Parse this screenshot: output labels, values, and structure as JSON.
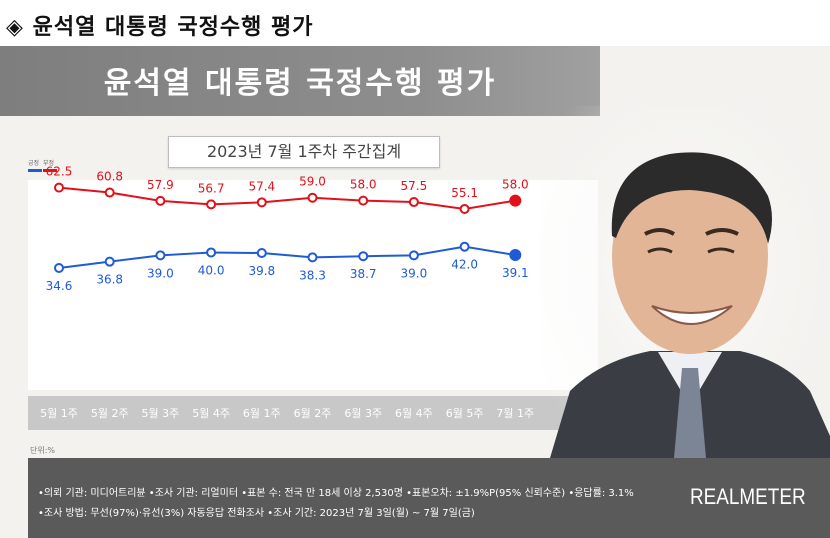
{
  "header": {
    "marker": "◈",
    "title": "윤석열 대통령 국정수행 평가"
  },
  "card": {
    "title": "윤석열 대통령 국정수행 평가",
    "subtitle": "2023년 7월 1주차 주간집계",
    "unit": "단위:%"
  },
  "footer": {
    "line1": "•의뢰 기관: 미디어트리뷴 •조사 기관: 리얼미터 •표본 수: 전국 만 18세 이상 2,530명 •표본오차: ±1.9%P(95% 신뢰수준) •응답률: 3.1%",
    "line2": "•조사 방법: 무선(97%)·유선(3%) 자동응답 전화조사 •조사 기간: 2023년 7월 3일(월) ~ 7월 7일(금)",
    "brand": "REALMETER"
  },
  "colors": {
    "positive": "#1f5bd6",
    "negative": "#e1111a",
    "axis_band": "#c8c8c8",
    "footer": "#5a5a5a"
  },
  "chart_data": {
    "type": "line",
    "title": "윤석열 대통령 국정수행 평가",
    "subtitle": "2023년 7월 1주차 주간집계",
    "categories": [
      "5월 1주",
      "5월 2주",
      "5월 3주",
      "5월 4주",
      "6월 1주",
      "6월 2주",
      "6월 3주",
      "6월 4주",
      "6월 5주",
      "7월 1주"
    ],
    "series": [
      {
        "name": "부정",
        "color": "#e1111a",
        "values": [
          62.5,
          60.8,
          57.9,
          56.7,
          57.4,
          59.0,
          58.0,
          57.5,
          55.1,
          58.0
        ],
        "labels": [
          "62.5",
          "60.8",
          "57.9",
          "56.7",
          "57.4",
          "59.0",
          "58.0",
          "57.5",
          "55.1",
          "58.0"
        ]
      },
      {
        "name": "긍정",
        "color": "#1f5bd6",
        "values": [
          34.6,
          36.8,
          39.0,
          40.0,
          39.8,
          38.3,
          38.7,
          39.0,
          42.0,
          39.1
        ],
        "labels": [
          "34.6",
          "36.8",
          "39.0",
          "40.0",
          "39.8",
          "38.3",
          "38.7",
          "39.0",
          "42.0",
          "39.1"
        ]
      }
    ],
    "unit": "단위:%",
    "legend_position": "top-left",
    "grid": false
  }
}
